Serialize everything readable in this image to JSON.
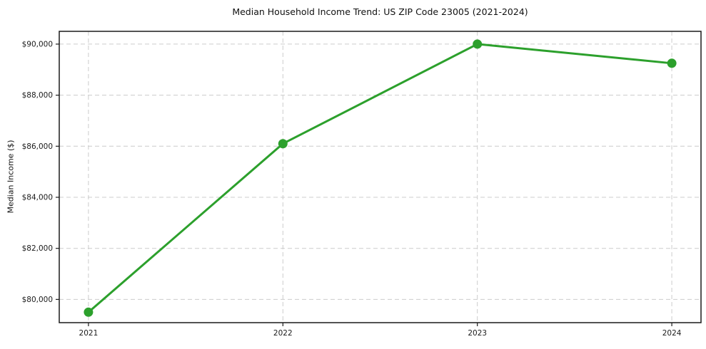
{
  "chart_data": {
    "type": "line",
    "title": "Median Household Income Trend: US ZIP Code 23005 (2021-2024)",
    "xlabel": "",
    "ylabel": "Median Income ($)",
    "categories": [
      "2021",
      "2022",
      "2023",
      "2024"
    ],
    "values": [
      79500,
      86100,
      90000,
      89250
    ],
    "ylim": [
      79090,
      90500
    ],
    "yticks": [
      80000,
      82000,
      84000,
      86000,
      88000,
      90000
    ],
    "ytick_labels": [
      "$80,000",
      "$82,000",
      "$84,000",
      "$86,000",
      "$88,000",
      "$90,000"
    ],
    "grid": true,
    "grid_style": "dashed",
    "legend": false,
    "marker": "circle",
    "line_color": "#2ca02c",
    "grid_color": "#cccccc",
    "spine_color": "#1a1a1a",
    "text_color": "#1a1a1a",
    "background": "#ffffff"
  }
}
